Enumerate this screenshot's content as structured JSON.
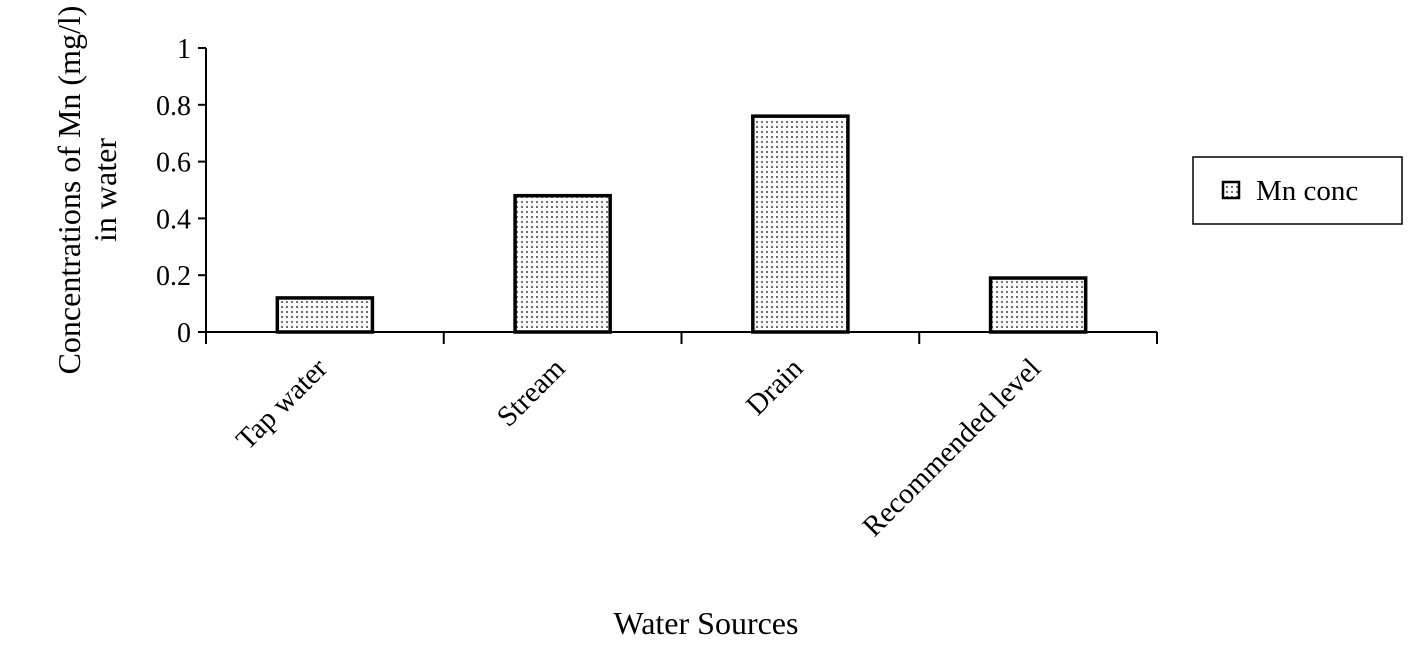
{
  "chart_data": {
    "type": "bar",
    "categories": [
      "Tap water",
      "Stream",
      "Drain",
      "Recommended level"
    ],
    "series": [
      {
        "name": "Mn conc",
        "values": [
          0.12,
          0.48,
          0.76,
          0.19
        ]
      }
    ],
    "xlabel": "Water Sources",
    "ylabel_line1": "Concentrations of Mn (mg/l)",
    "ylabel_line2": "in water",
    "ylim": [
      0,
      1
    ],
    "yticks": [
      "0",
      "0.2",
      "0.4",
      "0.6",
      "0.8",
      "1"
    ],
    "ytick_values": [
      0,
      0.2,
      0.4,
      0.6,
      0.8,
      1
    ],
    "grid": false,
    "legend_position": "right",
    "colors": {
      "bar_stroke": "#000000",
      "bar_fill_dots": "#6e6e6e",
      "background": "#ffffff"
    }
  }
}
